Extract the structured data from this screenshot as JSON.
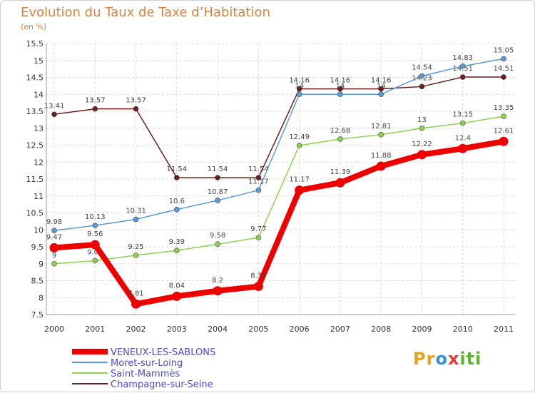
{
  "chart_data": {
    "type": "line",
    "title": "Evolution du Taux de Taxe d’Habitation",
    "ylabel": "(en %)",
    "x": [
      "2000",
      "2001",
      "2002",
      "2003",
      "2004",
      "2005",
      "2006",
      "2007",
      "2008",
      "2009",
      "2010",
      "2011"
    ],
    "ylim": [
      7.5,
      15.5
    ],
    "yticks": [
      "7.5",
      "8",
      "8.5",
      "9",
      "9.5",
      "10",
      "10.5",
      "11",
      "11.5",
      "12",
      "12.5",
      "13",
      "13.5",
      "14",
      "14.5",
      "15",
      "15.5"
    ],
    "grid": true,
    "legend_position": "bottom-left",
    "series": [
      {
        "name": "VENEUX-LES-SABLONS",
        "color": "#ee0000",
        "values": [
          9.47,
          9.56,
          7.81,
          8.04,
          8.2,
          8.33,
          11.17,
          11.39,
          11.88,
          12.22,
          12.4,
          12.61
        ],
        "labels": [
          "9.47",
          "9.56",
          "7.81",
          "8.04",
          "8.2",
          "8.33",
          "11.17",
          "11.39",
          "11.88",
          "12.22",
          "12.4",
          "12.61"
        ]
      },
      {
        "name": "Moret-sur-Loing",
        "color": "#5a9bd5",
        "values": [
          9.98,
          10.13,
          10.31,
          10.6,
          10.87,
          11.17,
          14,
          14,
          14,
          14.54,
          14.83,
          15.05
        ],
        "labels": [
          "9.98",
          "10.13",
          "10.31",
          "10.6",
          "10.87",
          "11.17",
          "14",
          "14",
          "14",
          "14.54",
          "14.83",
          "15.05"
        ]
      },
      {
        "name": "Saint-Mammès",
        "color": "#8fd14f",
        "values": [
          9,
          9.09,
          9.25,
          9.39,
          9.58,
          9.77,
          12.49,
          12.68,
          12.81,
          13,
          13.15,
          13.35
        ],
        "labels": [
          "9",
          "9.09",
          "9.25",
          "9.39",
          "9.58",
          "9.77",
          "12.49",
          "12.68",
          "12.81",
          "13",
          "13.15",
          "13.35"
        ]
      },
      {
        "name": "Champagne-sur-Seine",
        "color": "#6b1f1f",
        "values": [
          13.41,
          13.57,
          13.57,
          11.54,
          11.54,
          11.54,
          14.16,
          14.16,
          14.16,
          14.23,
          14.51,
          14.51
        ],
        "labels": [
          "13.41",
          "13.57",
          "13.57",
          "11.54",
          "11.54",
          "11.54",
          "14.16",
          "14.16",
          "14.16",
          "14.23",
          "14.51",
          "14.51"
        ]
      }
    ]
  },
  "logo": {
    "text": "Proxiti",
    "letters": [
      "P",
      "r",
      "o",
      "x",
      "i",
      "t",
      "i"
    ],
    "colors": [
      "#e8a020",
      "#e8a020",
      "#3b8fd6",
      "#e23b3b",
      "#5bb531",
      "#5bb531",
      "#5bb531"
    ]
  }
}
